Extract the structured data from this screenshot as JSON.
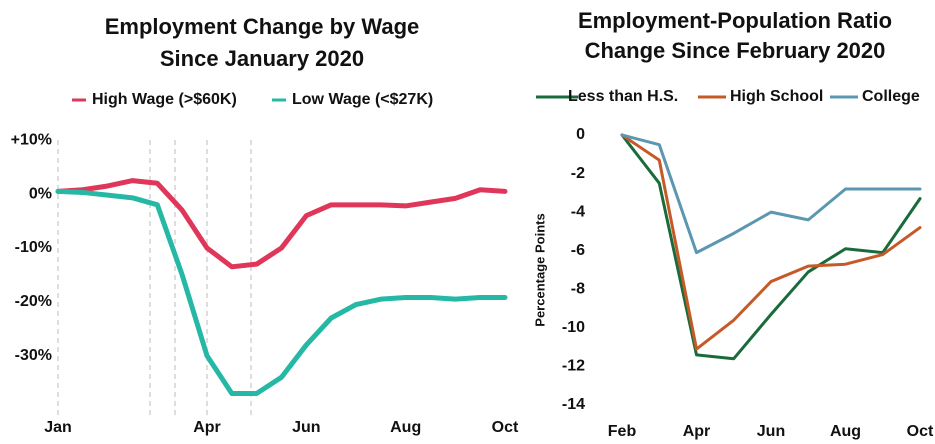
{
  "chart_data": [
    {
      "type": "line",
      "title": [
        "Employment Change by Wage",
        "Since January 2020"
      ],
      "categories": [
        "Jan",
        null,
        null,
        null,
        null,
        null,
        "Apr",
        null,
        null,
        null,
        "Jun",
        null,
        null,
        null,
        "Aug",
        null,
        null,
        null,
        "Oct"
      ],
      "series": [
        {
          "name": "High Wage (>$60K)",
          "color": "#e0365a",
          "values": [
            0.5,
            0.8,
            1.5,
            2.5,
            2,
            -3,
            -10,
            -13.5,
            -13,
            -10,
            -4,
            -2,
            -2,
            -2,
            -2.2,
            -1.5,
            -0.8,
            0.8,
            0.5
          ]
        },
        {
          "name": "Low Wage (<$27K)",
          "color": "#25b8a5",
          "values": [
            0.5,
            0.3,
            -0.2,
            -0.7,
            -2,
            -15,
            -30,
            -37,
            -37,
            -34,
            -28,
            -23,
            -20.5,
            -19.5,
            -19.2,
            -19.2,
            -19.5,
            -19.2,
            -19.2
          ]
        }
      ],
      "ylim": [
        -41,
        12
      ],
      "yticks": [
        {
          "value": 10,
          "label": "+10%"
        },
        {
          "value": 0,
          "label": "0%"
        },
        {
          "value": -10,
          "label": "-10%"
        },
        {
          "value": -20,
          "label": "-20%"
        },
        {
          "value": -30,
          "label": "-30%"
        }
      ]
    },
    {
      "type": "line",
      "title": [
        "Employment-Population Ratio",
        "Change Since February 2020"
      ],
      "y_label": "Percentage Points",
      "categories": [
        "Feb",
        null,
        "Apr",
        null,
        "Jun",
        null,
        "Aug",
        null,
        "Oct"
      ],
      "series": [
        {
          "name": "Less than H.S.",
          "color": "#1a6b3c",
          "values": [
            0,
            -2.5,
            -11.4,
            -11.6,
            -9.3,
            -7.1,
            -5.9,
            -6.1,
            -3.3
          ]
        },
        {
          "name": "High School",
          "color": "#c55a28",
          "values": [
            0,
            -1.3,
            -11.1,
            -9.6,
            -7.6,
            -6.8,
            -6.7,
            -6.2,
            -4.8
          ]
        },
        {
          "name": "College",
          "color": "#5b97b0",
          "values": [
            0,
            -0.5,
            -6.1,
            -5.1,
            -4,
            -4.4,
            -2.8,
            -2.8,
            -2.8
          ]
        }
      ],
      "ylim": [
        -14,
        0
      ],
      "yticks": [
        0,
        -2,
        -4,
        -6,
        -8,
        -10,
        -12,
        -14
      ]
    }
  ]
}
